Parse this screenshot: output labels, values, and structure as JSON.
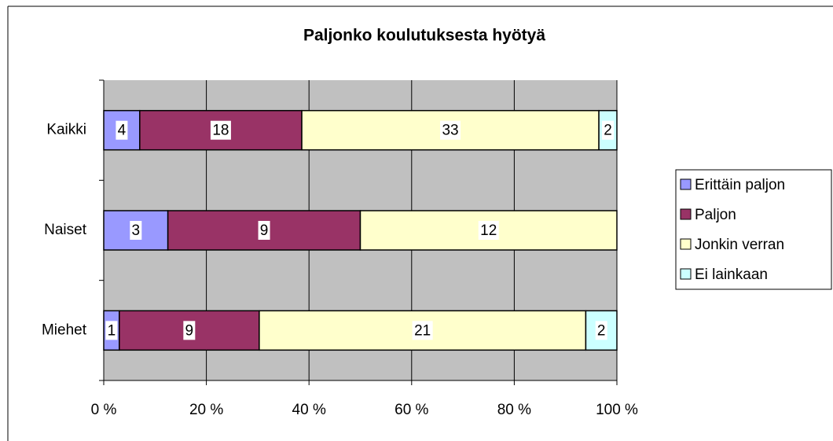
{
  "chart_data": {
    "type": "bar",
    "orientation": "horizontal",
    "stacking": "percent",
    "title": "Paljonko koulutuksesta hyötyä",
    "categories": [
      "Kaikki",
      "Naiset",
      "Miehet"
    ],
    "series": [
      {
        "name": "Erittäin paljon",
        "color": "#9999ff",
        "values": [
          4,
          3,
          1
        ]
      },
      {
        "name": "Paljon",
        "color": "#993366",
        "values": [
          18,
          9,
          9
        ]
      },
      {
        "name": "Jonkin verran",
        "color": "#ffffcc",
        "values": [
          33,
          12,
          21
        ]
      },
      {
        "name": "Ei lainkaan",
        "color": "#ccffff",
        "values": [
          2,
          null,
          2
        ]
      }
    ],
    "xlim": [
      0,
      100
    ],
    "xticks": [
      {
        "value": 0,
        "label": "0 %"
      },
      {
        "value": 20,
        "label": "20 %"
      },
      {
        "value": 40,
        "label": "40 %"
      },
      {
        "value": 60,
        "label": "60 %"
      },
      {
        "value": 80,
        "label": "80 %"
      },
      {
        "value": 100,
        "label": "100 %"
      }
    ],
    "grid": true,
    "legend": "right",
    "plot_background": "#c0c0c0"
  }
}
